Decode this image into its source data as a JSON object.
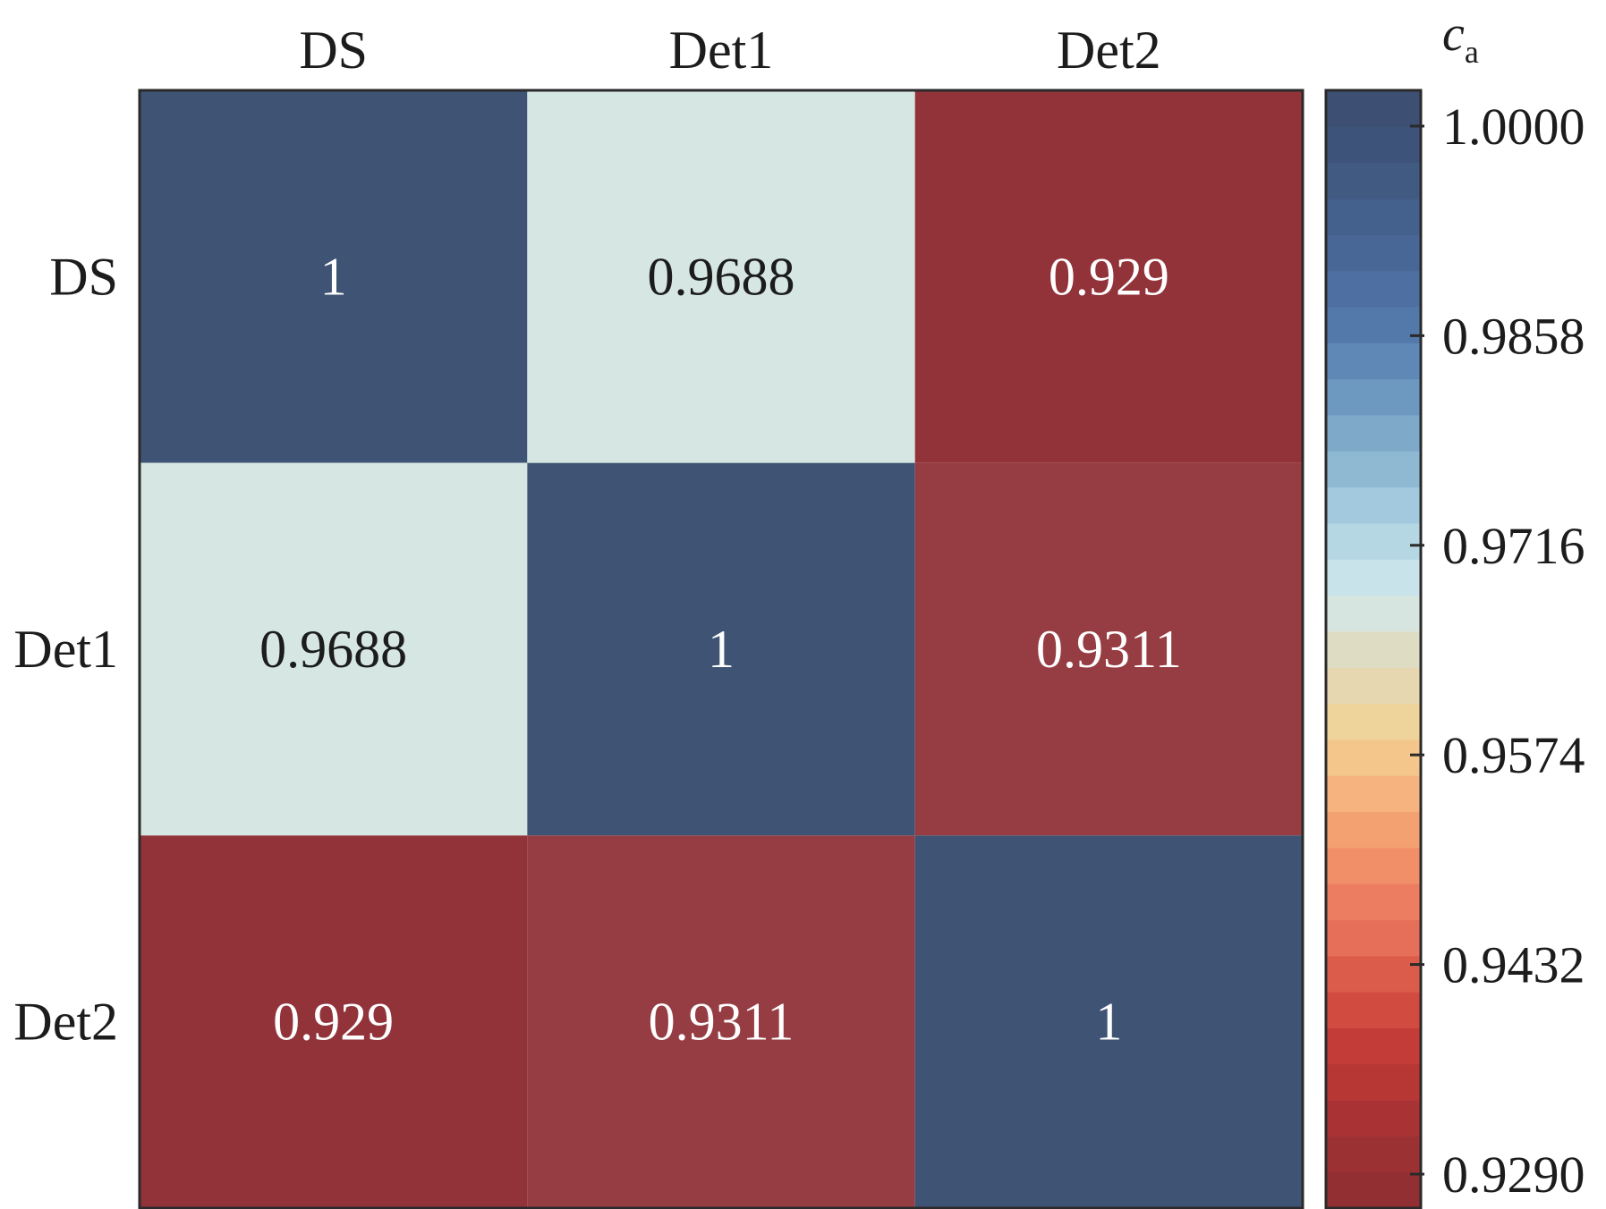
{
  "chart_data": {
    "type": "heatmap",
    "x_categories": [
      "DS",
      "Det1",
      "Det2"
    ],
    "y_categories": [
      "DS",
      "Det1",
      "Det2"
    ],
    "values": [
      [
        1,
        0.9688,
        0.929
      ],
      [
        0.9688,
        1,
        0.9311
      ],
      [
        0.929,
        0.9311,
        1
      ]
    ],
    "cell_labels": [
      [
        "1",
        "0.9688",
        "0.929"
      ],
      [
        "0.9688",
        "1",
        "0.9311"
      ],
      [
        "0.929",
        "0.9311",
        "1"
      ]
    ],
    "colorbar": {
      "title_main": "c",
      "title_sub": "a",
      "range": [
        0.929,
        1.0
      ],
      "tick_labels": [
        "1.0000",
        "0.9858",
        "0.9716",
        "0.9574",
        "0.9432",
        "0.9290"
      ],
      "tick_values": [
        1.0,
        0.9858,
        0.9716,
        0.9574,
        0.9432,
        0.929
      ],
      "colors_bottom_to_top": [
        "#922f33",
        "#9c3134",
        "#a93334",
        "#b73735",
        "#c33c38",
        "#d24b41",
        "#db5c4b",
        "#e56f58",
        "#ec7d61",
        "#f08f68",
        "#f4a171",
        "#f6b37f",
        "#f4c68c",
        "#eed39a",
        "#e6d7b1",
        "#dfdcc4",
        "#d6e5e0",
        "#c9e3ea",
        "#b5d7e4",
        "#a2c9dd",
        "#8fb9d3",
        "#7ea9c9",
        "#6d98bf",
        "#5f88b6",
        "#5378aa",
        "#4d6fa2",
        "#486797",
        "#44608c",
        "#415a82",
        "#3e5379",
        "#3d5074"
      ],
      "min_color": "#92333a",
      "max_color": "#3f5474",
      "mid_color": "#d6e7e3"
    },
    "grid": false,
    "legend_placement": "right"
  }
}
